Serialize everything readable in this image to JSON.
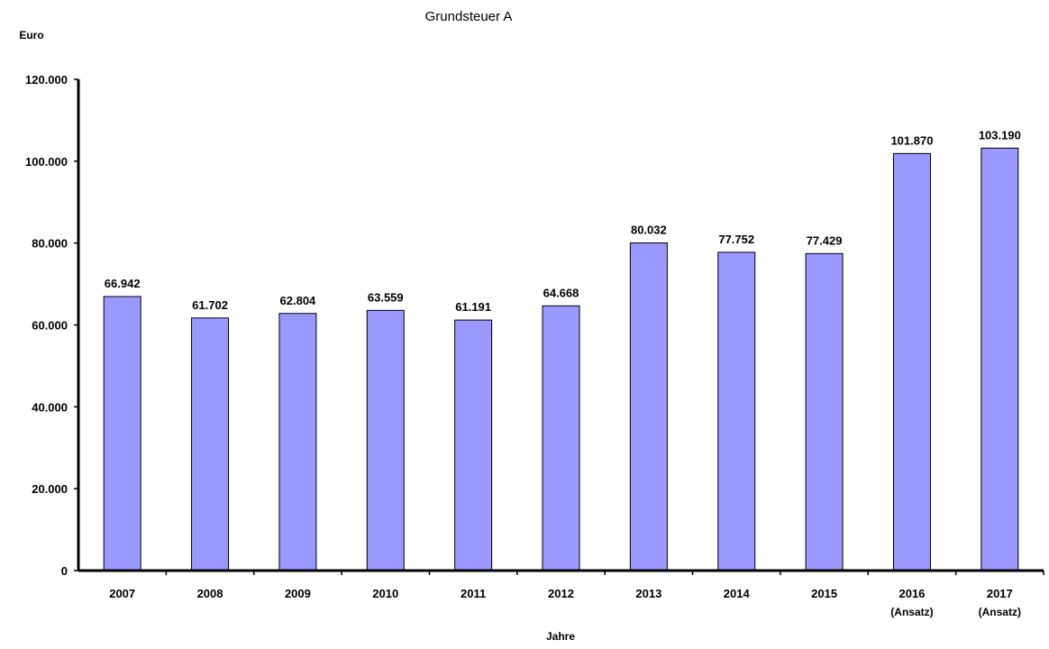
{
  "chart_data": {
    "type": "bar",
    "title": "Grundsteuer A",
    "ylabel": "Euro",
    "xlabel": "Jahre",
    "categories": [
      [
        "2007"
      ],
      [
        "2008"
      ],
      [
        "2009"
      ],
      [
        "2010"
      ],
      [
        "2011"
      ],
      [
        "2012"
      ],
      [
        "2013"
      ],
      [
        "2014"
      ],
      [
        "2015"
      ],
      [
        "2016",
        "(Ansatz)"
      ],
      [
        "2017",
        "(Ansatz)"
      ]
    ],
    "values": [
      66942,
      61702,
      62804,
      63559,
      61191,
      64668,
      80032,
      77752,
      77429,
      101870,
      103190
    ],
    "value_labels": [
      "66.942",
      "61.702",
      "62.804",
      "63.559",
      "61.191",
      "64.668",
      "80.032",
      "77.752",
      "77.429",
      "101.870",
      "103.190"
    ],
    "ylim": [
      0,
      120000
    ],
    "yticks": [
      0,
      20000,
      40000,
      60000,
      80000,
      100000,
      120000
    ],
    "ytick_labels": [
      "0",
      "20.000",
      "40.000",
      "60.000",
      "80.000",
      "100.000",
      "120.000"
    ],
    "bar_color": "#9999ff",
    "grid": false,
    "legend": "none"
  }
}
